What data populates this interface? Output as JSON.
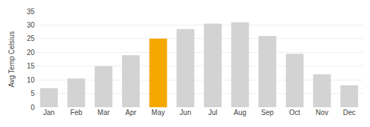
{
  "chart_data": {
    "type": "bar",
    "categories": [
      "Jan",
      "Feb",
      "Mar",
      "Apr",
      "May",
      "Jun",
      "Jul",
      "Aug",
      "Sep",
      "Oct",
      "Nov",
      "Dec"
    ],
    "values": [
      7,
      10.5,
      15,
      19,
      25,
      28.5,
      30.5,
      31,
      26,
      19.5,
      12,
      8
    ],
    "colors": [
      "#d3d3d3",
      "#d3d3d3",
      "#d3d3d3",
      "#d3d3d3",
      "#f5a800",
      "#d3d3d3",
      "#d3d3d3",
      "#d3d3d3",
      "#d3d3d3",
      "#d3d3d3",
      "#d3d3d3",
      "#d3d3d3"
    ],
    "ylabel": "Avg Temp Celsius",
    "ylim": [
      0,
      35
    ],
    "yticks": [
      0,
      5,
      10,
      15,
      20,
      25,
      30,
      35
    ],
    "grid": true
  }
}
